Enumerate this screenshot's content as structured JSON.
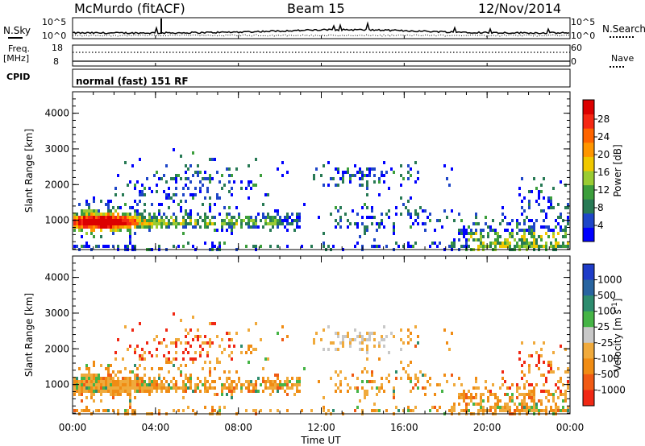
{
  "header": {
    "title": "McMurdo (fitACF)",
    "beam": "Beam 15",
    "date": "12/Nov/2014"
  },
  "noise_panel": {
    "left_label": "N.Sky",
    "right_label": "N.Search",
    "left_ticks": [
      "10^5",
      "10^0"
    ],
    "right_ticks": [
      "10^5",
      "10^0"
    ]
  },
  "freq_panel": {
    "left_label": "Freq.",
    "left_unit": "[MHz]",
    "left_ticks": [
      "18",
      "8"
    ],
    "right_label": "Nave",
    "right_ticks": [
      "60",
      "0"
    ]
  },
  "cpid": {
    "label": "CPID",
    "value": "normal (fast) 151 RF"
  },
  "chart_data": [
    {
      "type": "heatmap",
      "name": "power",
      "ylabel": "Slant Range [km]",
      "xlabel": "Time UT",
      "y_ticks": [
        "1000",
        "2000",
        "3000",
        "4000"
      ],
      "x_ticks": [
        "00:00",
        "04:00",
        "08:00",
        "12:00",
        "16:00",
        "20:00",
        "00:00"
      ],
      "ylim": [
        180,
        4600
      ],
      "xlim_hours": [
        0,
        24
      ],
      "colorbar": {
        "label": "Power [dB]",
        "tick_labels": [
          "4",
          "8",
          "12",
          "16",
          "20",
          "24",
          "28"
        ],
        "colors": [
          "#0000ff",
          "#1e46c8",
          "#287a55",
          "#3c9e3c",
          "#9acc33",
          "#f0c800",
          "#ff9600",
          "#ff6400",
          "#f52814",
          "#dc0000"
        ]
      }
    },
    {
      "type": "heatmap",
      "name": "velocity",
      "ylabel": "Slant Range [km]",
      "xlabel": "Time UT",
      "y_ticks": [
        "1000",
        "2000",
        "3000",
        "4000"
      ],
      "x_ticks": [
        "00:00",
        "04:00",
        "08:00",
        "12:00",
        "16:00",
        "20:00",
        "00:00"
      ],
      "ylim": [
        180,
        4600
      ],
      "xlim_hours": [
        0,
        24
      ],
      "colorbar": {
        "label": "Velocity [m s",
        "label_sup": "-1",
        "label_end": "]",
        "tick_labels": [
          "1000",
          "500",
          "100",
          "25",
          "-25",
          "-100",
          "-500",
          "-1000"
        ],
        "colors": [
          "#1e3cc8",
          "#2864a0",
          "#2d8c6e",
          "#46b446",
          "#c8c8c8",
          "#f0aa3c",
          "#f08c14",
          "#f05a14",
          "#f02814"
        ]
      }
    }
  ],
  "x_axis_title": "Time UT"
}
